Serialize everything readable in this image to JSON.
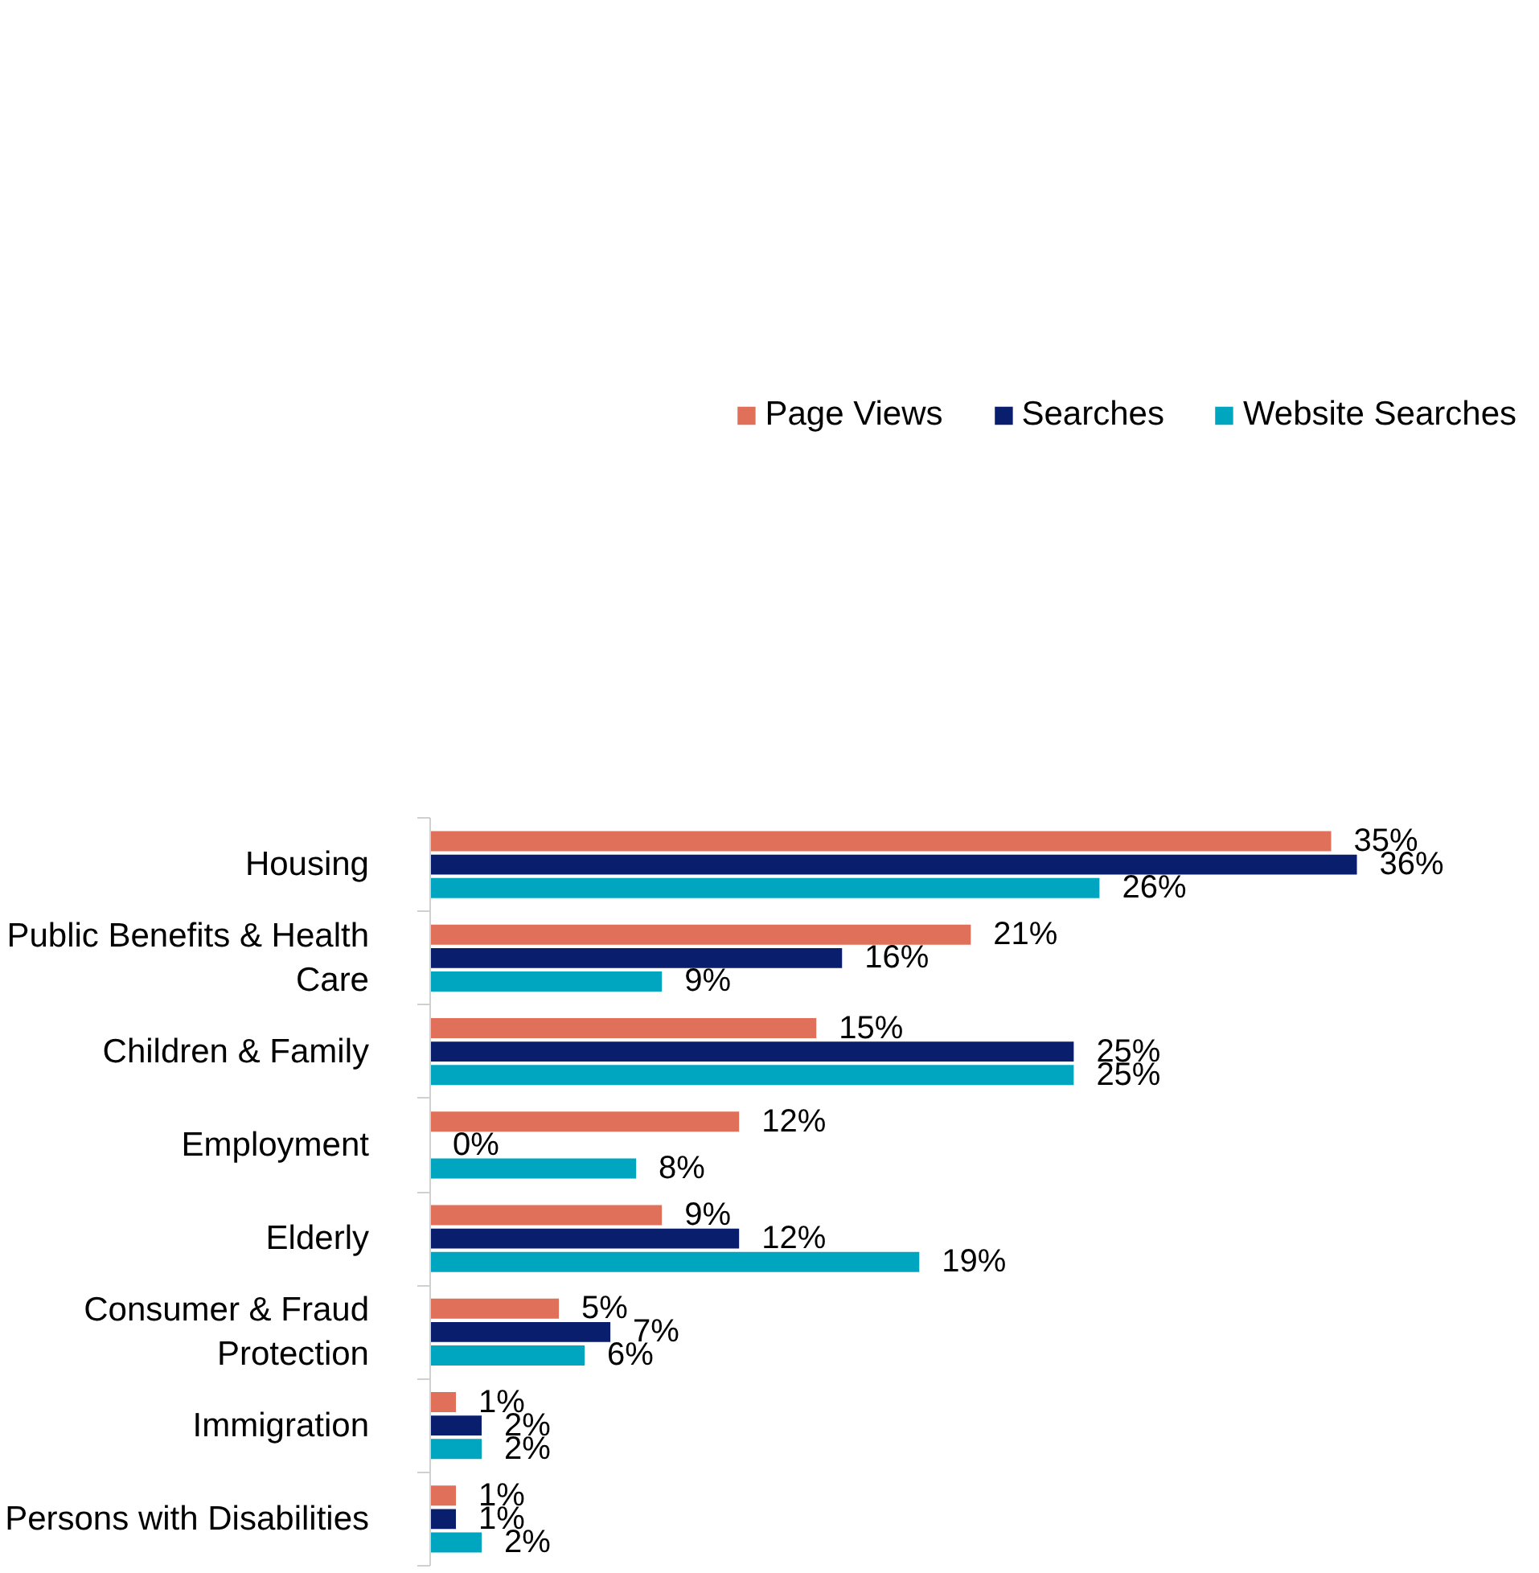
{
  "chart_data": {
    "type": "bar",
    "orientation": "horizontal",
    "legend": "top",
    "grid": false,
    "categories": [
      "Housing",
      "Public Benefits & Health Care",
      "Children & Family",
      "Employment",
      "Elderly",
      "Consumer & Fraud Protection",
      "Immigration",
      "Persons with Disabilities"
    ],
    "series": [
      {
        "name": "Page Views",
        "color": "#e0705a",
        "values": [
          35,
          21,
          15,
          12,
          9,
          5,
          1,
          1
        ],
        "value_labels": [
          "35%",
          "21%",
          "15%",
          "12%",
          "9%",
          "5%",
          "1%",
          "1%"
        ]
      },
      {
        "name": "Searches",
        "color": "#0a1e6e",
        "values": [
          36,
          16,
          25,
          0,
          12,
          7,
          2,
          1
        ],
        "value_labels": [
          "36%",
          "16%",
          "25%",
          "0%",
          "12%",
          "7%",
          "2%",
          "1%"
        ]
      },
      {
        "name": "Website Searches",
        "color": "#00a5c0",
        "values": [
          26,
          9,
          25,
          8,
          19,
          6,
          2,
          2
        ],
        "value_labels": [
          "26%",
          "9%",
          "25%",
          "8%",
          "19%",
          "6%",
          "2%",
          "2%"
        ]
      }
    ]
  }
}
